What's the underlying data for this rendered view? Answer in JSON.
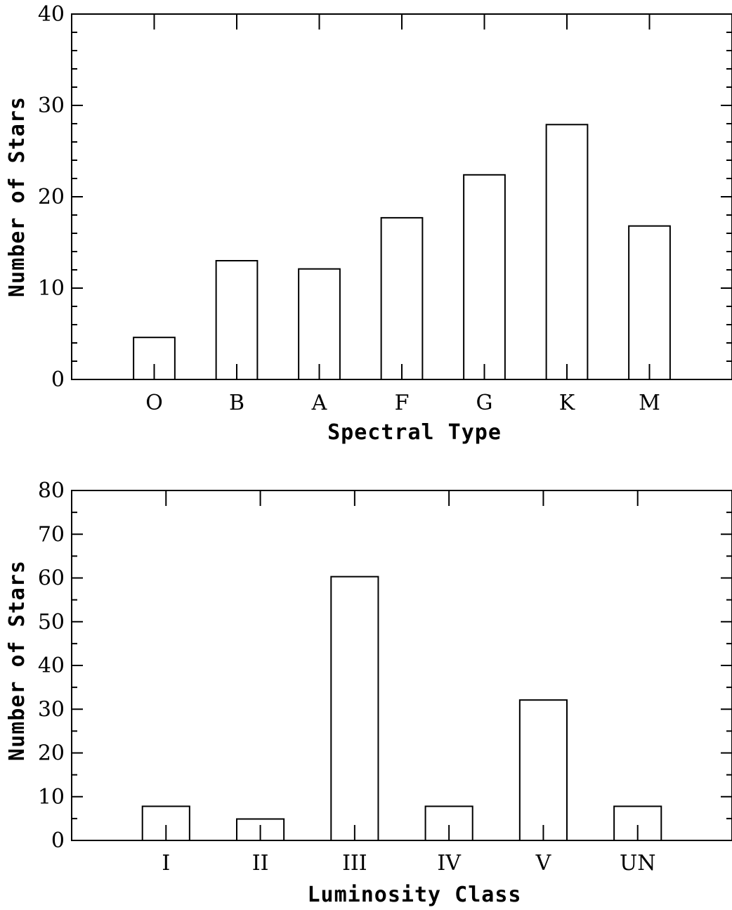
{
  "chart_data": [
    {
      "type": "bar",
      "xlabel": "Spectral Type",
      "ylabel": "Number of Stars",
      "categories": [
        "O",
        "B",
        "A",
        "F",
        "G",
        "K",
        "M"
      ],
      "values": [
        4.6,
        13.0,
        12.1,
        17.7,
        22.4,
        27.9,
        16.8
      ],
      "ylim": [
        0,
        40
      ],
      "xlim": [
        -1,
        7
      ],
      "yticks_major": [
        0,
        10,
        20,
        30,
        40
      ],
      "yticks_major_labels": [
        "0",
        "10",
        "20",
        "30",
        "40"
      ],
      "yticks_minor_step": 2,
      "bar_width": 0.5,
      "grid": false,
      "legend": "none"
    },
    {
      "type": "bar",
      "xlabel": "Luminosity Class",
      "ylabel": "Number of Stars",
      "categories": [
        "I",
        "II",
        "III",
        "IV",
        "V",
        "UN"
      ],
      "values": [
        7.8,
        4.9,
        60.3,
        7.8,
        32.1,
        7.8
      ],
      "ylim": [
        0,
        80
      ],
      "xlim": [
        -1,
        6
      ],
      "yticks_major": [
        0,
        10,
        20,
        30,
        40,
        50,
        60,
        70,
        80
      ],
      "yticks_major_labels": [
        "0",
        "10",
        "20",
        "30",
        "40",
        "50",
        "60",
        "70",
        "80"
      ],
      "yticks_minor_step": 5,
      "bar_width": 0.5,
      "grid": false,
      "legend": "none"
    }
  ]
}
